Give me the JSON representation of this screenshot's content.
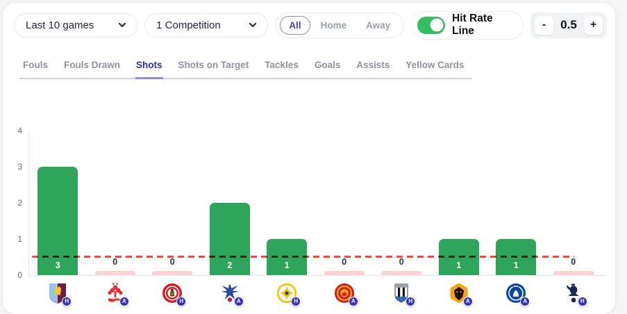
{
  "header": {
    "games_select": {
      "value": "Last 10 games"
    },
    "competition_select": {
      "value": "1 Competition"
    },
    "venue_filter": {
      "options": [
        "All",
        "Home",
        "Away"
      ],
      "selected": "All"
    },
    "hit_rate_toggle": {
      "label": "Hit Rate Line",
      "enabled": true
    },
    "line_stepper": {
      "decrement": "-",
      "value": "0.5",
      "increment": "+"
    }
  },
  "tabs": {
    "items": [
      "Fouls",
      "Fouls Drawn",
      "Shots",
      "Shots on Target",
      "Tackles",
      "Goals",
      "Assists",
      "Yellow Cards"
    ],
    "active": "Shots"
  },
  "chart_data": {
    "type": "bar",
    "stat": "Shots",
    "categories": [
      "Aston Villa (H)",
      "Nottingham Forest (A)",
      "Brentford (H)",
      "Crystal Palace (A)",
      "Leeds United (H)",
      "Manchester United (A)",
      "Newcastle United (H)",
      "Wolves (A)",
      "Chelsea (A)",
      "Tottenham Hotspur (H)"
    ],
    "values": [
      3,
      0,
      0,
      2,
      1,
      0,
      0,
      1,
      1,
      0
    ],
    "hit_rate_line": 0.5,
    "ylim": [
      0,
      4
    ],
    "yticks": [
      0,
      1,
      2,
      3,
      4
    ],
    "grid": false,
    "legend": "none"
  },
  "games": [
    {
      "team": "Aston Villa",
      "team_key": "aston-villa",
      "venue": "H",
      "value": 3
    },
    {
      "team": "Nottingham Forest",
      "team_key": "nottm-forest",
      "venue": "A",
      "value": 0
    },
    {
      "team": "Brentford",
      "team_key": "brentford",
      "venue": "H",
      "value": 0
    },
    {
      "team": "Crystal Palace",
      "team_key": "crystal-palace",
      "venue": "A",
      "value": 2
    },
    {
      "team": "Leeds United",
      "team_key": "leeds",
      "venue": "H",
      "value": 1
    },
    {
      "team": "Manchester United",
      "team_key": "man-united",
      "venue": "A",
      "value": 0
    },
    {
      "team": "Newcastle United",
      "team_key": "newcastle",
      "venue": "H",
      "value": 0
    },
    {
      "team": "Wolves",
      "team_key": "wolves",
      "venue": "A",
      "value": 1
    },
    {
      "team": "Chelsea",
      "team_key": "chelsea",
      "venue": "A",
      "value": 1
    },
    {
      "team": "Tottenham Hotspur",
      "team_key": "tottenham",
      "venue": "H",
      "value": 0
    }
  ],
  "colors": {
    "bar_positive": "#2ea55b",
    "bar_zero": "#f9d3d6",
    "hit_line": "#f2473d",
    "toggle_on": "#32bf63",
    "active_tab": "#2b2ba3",
    "venue_badge": "#3331bd"
  }
}
